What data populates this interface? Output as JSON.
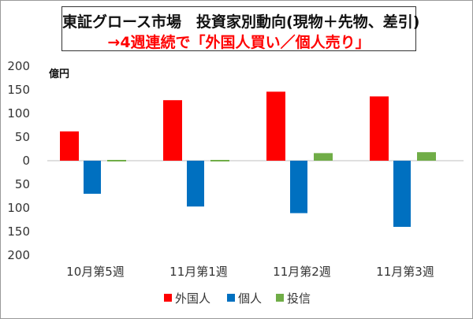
{
  "chart_data": {
    "type": "bar",
    "title": "東証グロース市場　投資家別動向(現物＋先物、差引)",
    "subtitle": "→4週連続で「外国人買い／個人売り」",
    "unit_label": "億円",
    "categories": [
      "10月第5週",
      "11月第1週",
      "11月第2週",
      "11月第3週"
    ],
    "series": [
      {
        "name": "外国人",
        "color": "#ff0000",
        "values": [
          62,
          128,
          146,
          136
        ]
      },
      {
        "name": "個人",
        "color": "#0070c0",
        "values": [
          -70,
          -97,
          -111,
          -140
        ]
      },
      {
        "name": "投信",
        "color": "#70ad47",
        "values": [
          3,
          3,
          16,
          18
        ]
      }
    ],
    "ylim": [
      -200,
      200
    ],
    "yticks": [
      200,
      150,
      100,
      50,
      0,
      -50,
      -100,
      -150,
      -200
    ],
    "ytick_labels": [
      "200",
      "150",
      "100",
      "50",
      "0",
      "50",
      "100",
      "150",
      "200"
    ],
    "legend_position": "bottom",
    "grid": false
  }
}
